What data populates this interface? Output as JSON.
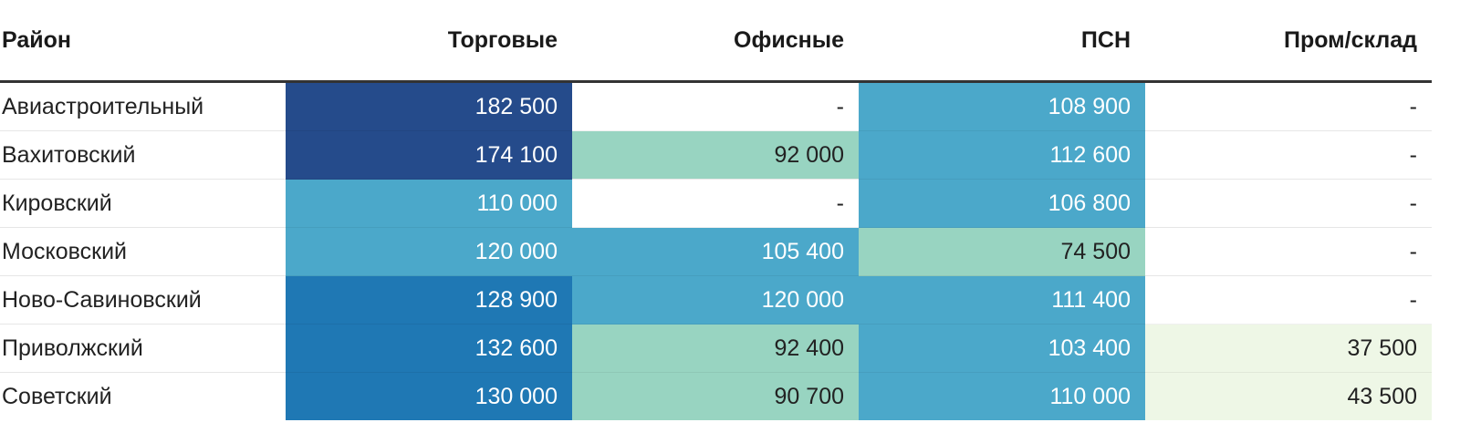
{
  "headers": [
    "Район",
    "Торговые",
    "Офисные",
    "ПСН",
    "Пром/склад"
  ],
  "rows": [
    {
      "district": "Авиастроительный",
      "cells": [
        {
          "v": "182 500",
          "bg": "#254b8b",
          "fg": "#ffffff"
        },
        {
          "v": "-",
          "bg": "#ffffff",
          "fg": "#222222"
        },
        {
          "v": "108 900",
          "bg": "#4ba8ca",
          "fg": "#ffffff"
        },
        {
          "v": "-",
          "bg": "#ffffff",
          "fg": "#222222"
        }
      ]
    },
    {
      "district": "Вахитовский",
      "cells": [
        {
          "v": "174 100",
          "bg": "#254b8b",
          "fg": "#ffffff"
        },
        {
          "v": "92 000",
          "bg": "#98d4c1",
          "fg": "#222222"
        },
        {
          "v": "112 600",
          "bg": "#4ba8ca",
          "fg": "#ffffff"
        },
        {
          "v": "-",
          "bg": "#ffffff",
          "fg": "#222222"
        }
      ]
    },
    {
      "district": "Кировский",
      "cells": [
        {
          "v": "110 000",
          "bg": "#4ba8ca",
          "fg": "#ffffff"
        },
        {
          "v": "-",
          "bg": "#ffffff",
          "fg": "#222222"
        },
        {
          "v": "106 800",
          "bg": "#4ba8ca",
          "fg": "#ffffff"
        },
        {
          "v": "-",
          "bg": "#ffffff",
          "fg": "#222222"
        }
      ]
    },
    {
      "district": "Московский",
      "cells": [
        {
          "v": "120 000",
          "bg": "#4ba8ca",
          "fg": "#ffffff"
        },
        {
          "v": "105 400",
          "bg": "#4ba8ca",
          "fg": "#ffffff"
        },
        {
          "v": "74 500",
          "bg": "#98d4c1",
          "fg": "#222222"
        },
        {
          "v": "-",
          "bg": "#ffffff",
          "fg": "#222222"
        }
      ]
    },
    {
      "district": "Ново-Савиновский",
      "cells": [
        {
          "v": "128 900",
          "bg": "#1f78b4",
          "fg": "#ffffff"
        },
        {
          "v": "120 000",
          "bg": "#4ba8ca",
          "fg": "#ffffff"
        },
        {
          "v": "111 400",
          "bg": "#4ba8ca",
          "fg": "#ffffff"
        },
        {
          "v": "-",
          "bg": "#ffffff",
          "fg": "#222222"
        }
      ]
    },
    {
      "district": "Приволжский",
      "cells": [
        {
          "v": "132 600",
          "bg": "#1f78b4",
          "fg": "#ffffff"
        },
        {
          "v": "92 400",
          "bg": "#98d4c1",
          "fg": "#222222"
        },
        {
          "v": "103 400",
          "bg": "#4ba8ca",
          "fg": "#ffffff"
        },
        {
          "v": "37 500",
          "bg": "#eef7e6",
          "fg": "#222222"
        }
      ]
    },
    {
      "district": "Советский",
      "cells": [
        {
          "v": "130 000",
          "bg": "#1f78b4",
          "fg": "#ffffff"
        },
        {
          "v": "90 700",
          "bg": "#98d4c1",
          "fg": "#222222"
        },
        {
          "v": "110 000",
          "bg": "#4ba8ca",
          "fg": "#ffffff"
        },
        {
          "v": "43 500",
          "bg": "#eef7e6",
          "fg": "#222222"
        }
      ]
    }
  ]
}
